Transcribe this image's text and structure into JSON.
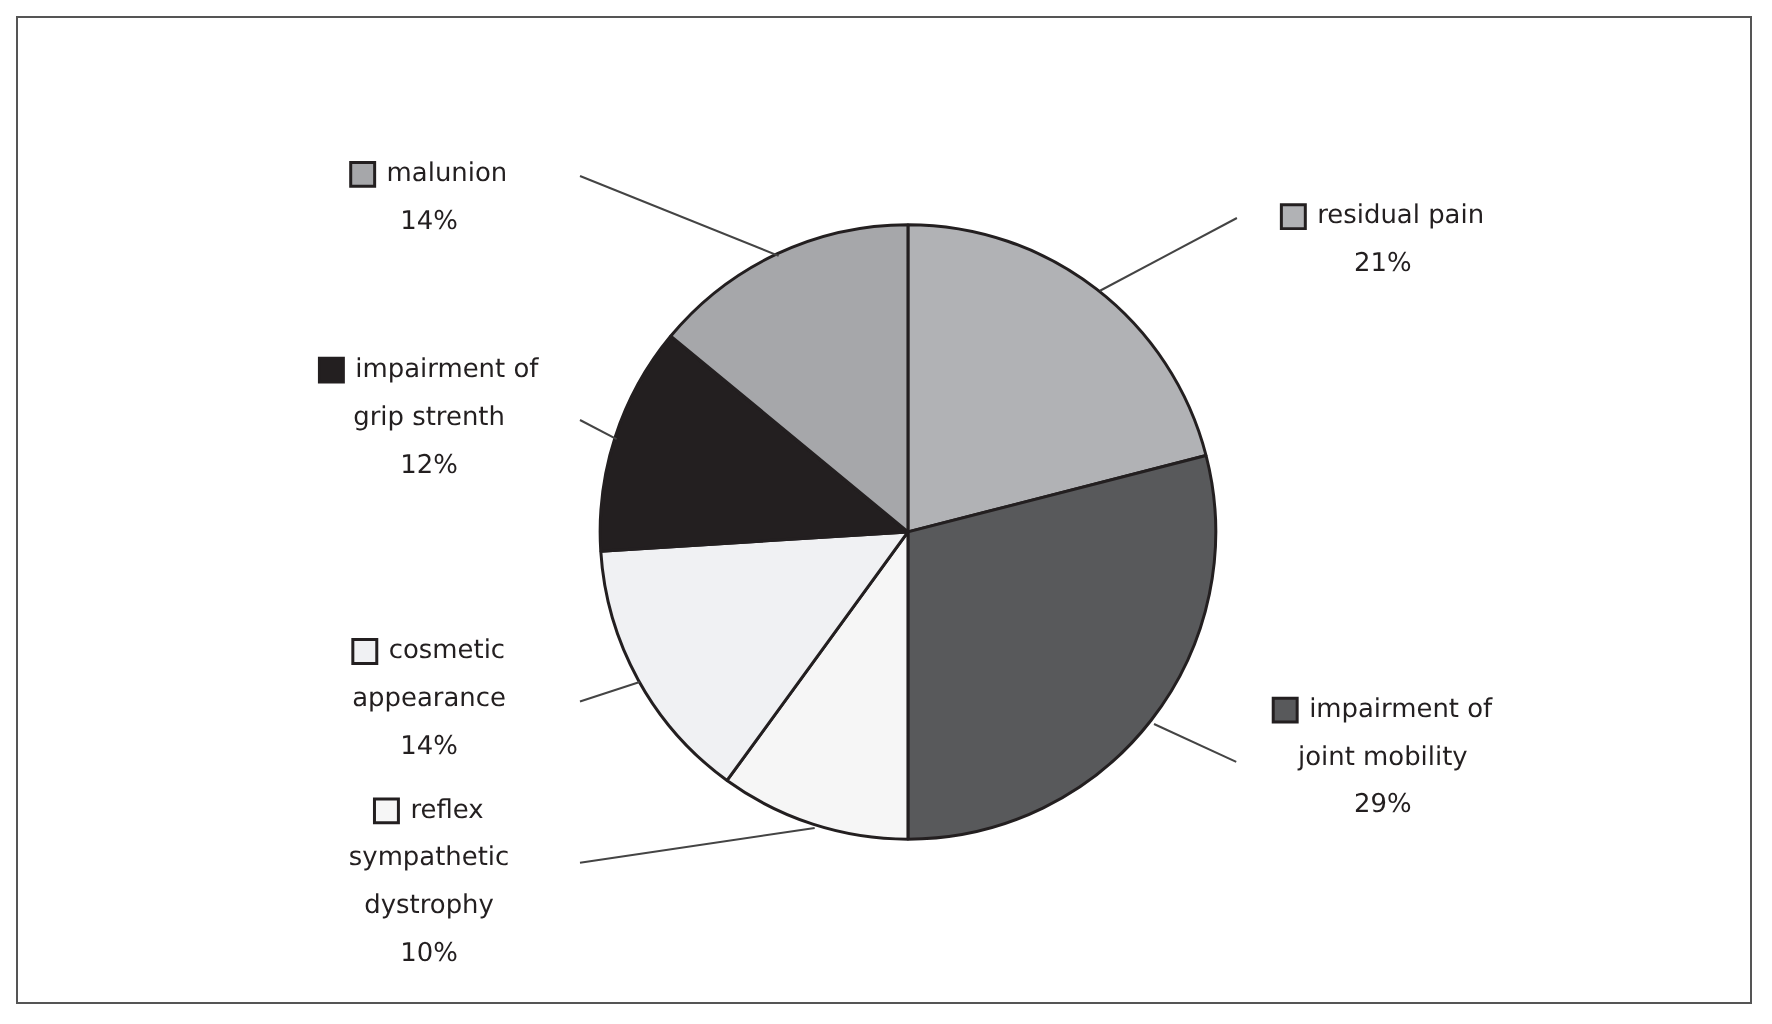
{
  "chart_data": {
    "type": "pie",
    "categories": [
      "residual pain",
      "impairment of joint mobility",
      "reflex sympathetic dystrophy",
      "cosmetic appearance",
      "impairment of grip strenth",
      "malunion"
    ],
    "values": [
      21,
      29,
      10,
      14,
      12,
      14
    ],
    "colors": [
      "#b1b2b5",
      "#58595b",
      "#f6f6f6",
      "#f0f1f3",
      "#231f20",
      "#a6a7aa"
    ],
    "value_labels": [
      "21%",
      "29%",
      "10%",
      "14%",
      "12%",
      "14%"
    ],
    "legend": "left"
  }
}
